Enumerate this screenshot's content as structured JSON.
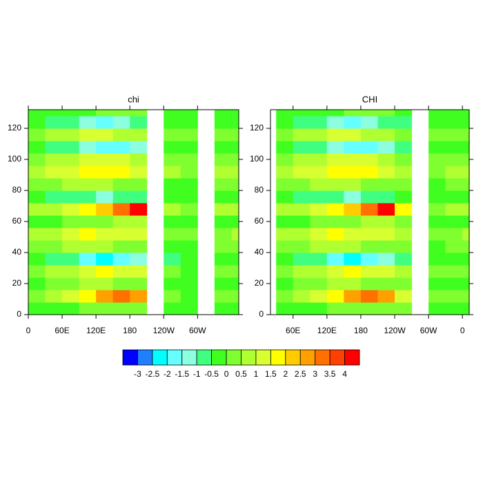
{
  "chart_data": [
    {
      "type": "heatmap",
      "title": "chi",
      "x": [
        15,
        45,
        75,
        105,
        135,
        165,
        195,
        225,
        255,
        285,
        315,
        345,
        375
      ],
      "y": [
        4,
        12,
        20,
        28,
        36,
        44,
        52,
        60,
        68,
        76,
        84,
        92,
        100,
        108,
        116,
        124,
        132
      ],
      "z": [
        [
          -0.2,
          -0.2,
          -0.2,
          0.2,
          0.2,
          0.2,
          0.2,
          null,
          -0.2,
          -0.2,
          null,
          -0.2,
          -0.2
        ],
        [
          0.2,
          0.5,
          1.2,
          1.8,
          2.6,
          3.2,
          2.8,
          null,
          0.2,
          -0.2,
          null,
          0.2,
          0.2
        ],
        [
          -0.2,
          0.2,
          0.2,
          0.6,
          0.6,
          0.3,
          0.3,
          null,
          -0.2,
          -0.2,
          null,
          -0.2,
          -0.2
        ],
        [
          0.2,
          0.6,
          0.8,
          1.2,
          1.6,
          1.4,
          1.0,
          null,
          0.2,
          -0.2,
          null,
          0.2,
          0.2
        ],
        [
          -0.3,
          -0.7,
          -1.0,
          -1.6,
          -2.4,
          -2.0,
          -1.2,
          null,
          -0.6,
          -0.4,
          null,
          -0.3,
          -0.3
        ],
        [
          0.2,
          0.4,
          0.6,
          0.8,
          0.6,
          0.4,
          0.3,
          null,
          -0.2,
          -0.2,
          null,
          0.2,
          0.2
        ],
        [
          0.6,
          0.8,
          1.2,
          1.6,
          1.4,
          1.2,
          1.0,
          null,
          0.3,
          0.2,
          null,
          0.4,
          0.6
        ],
        [
          -0.2,
          -0.2,
          0.2,
          0.2,
          0.4,
          0.6,
          0.6,
          null,
          -0.2,
          -0.2,
          null,
          -0.2,
          -0.2
        ],
        [
          0.6,
          0.8,
          1.2,
          1.8,
          2.4,
          3.4,
          4.1,
          null,
          0.6,
          0.4,
          null,
          0.6,
          0.6
        ],
        [
          -0.4,
          -0.6,
          -0.8,
          -1.0,
          -1.2,
          -0.8,
          -0.6,
          null,
          -0.4,
          -0.3,
          null,
          -0.4,
          -0.4
        ],
        [
          0.2,
          0.4,
          0.6,
          0.8,
          0.6,
          0.4,
          0.2,
          null,
          -0.2,
          -0.2,
          null,
          0.2,
          0.2
        ],
        [
          0.6,
          1.0,
          1.4,
          1.6,
          1.8,
          1.6,
          1.2,
          null,
          0.6,
          0.4,
          null,
          0.6,
          0.6
        ],
        [
          0.4,
          0.6,
          0.8,
          1.2,
          1.2,
          1.0,
          0.8,
          null,
          0.3,
          0.2,
          null,
          0.4,
          0.4
        ],
        [
          -0.3,
          -0.6,
          -1.0,
          -1.4,
          -1.8,
          -1.6,
          -1.2,
          null,
          -0.4,
          -0.3,
          null,
          -0.3,
          -0.3
        ],
        [
          0.4,
          0.6,
          0.8,
          1.0,
          1.0,
          0.8,
          0.6,
          null,
          0.2,
          0.2,
          null,
          0.4,
          0.4
        ],
        [
          -0.3,
          -0.6,
          -1.0,
          -1.4,
          -1.6,
          -1.4,
          -1.0,
          null,
          -0.4,
          -0.3,
          null,
          -0.3,
          -0.3
        ],
        [
          -0.2,
          -0.2,
          -0.2,
          -0.2,
          0.2,
          0.2,
          0.2,
          null,
          -0.2,
          -0.2,
          null,
          -0.2,
          -0.2
        ]
      ],
      "xlim": [
        0,
        373
      ],
      "ylim": [
        0,
        132
      ],
      "xticks": [
        0,
        {
          "value": 60,
          "label": "60E"
        },
        {
          "value": 120,
          "label": "120E"
        },
        180,
        {
          "value": 240,
          "label": "120W"
        },
        {
          "value": 300,
          "label": "60W"
        }
      ],
      "yticks": [
        0,
        20,
        40,
        60,
        80,
        100,
        120
      ]
    },
    {
      "type": "heatmap",
      "title": "CHI",
      "x": [
        15,
        45,
        75,
        105,
        135,
        165,
        195,
        225,
        255,
        285,
        315,
        345,
        375
      ],
      "y": [
        4,
        12,
        20,
        28,
        36,
        44,
        52,
        60,
        68,
        76,
        84,
        92,
        100,
        108,
        116,
        124,
        132
      ],
      "z": [
        [
          null,
          -0.2,
          -0.2,
          -0.2,
          0.2,
          0.2,
          0.2,
          0.2,
          0.2,
          null,
          -0.2,
          -0.2,
          -0.2
        ],
        [
          null,
          0.2,
          0.5,
          1.2,
          1.8,
          2.6,
          3.2,
          2.8,
          1.2,
          null,
          0.2,
          0.2,
          0.2
        ],
        [
          null,
          -0.2,
          0.2,
          0.2,
          0.6,
          0.6,
          0.3,
          0.3,
          0.2,
          null,
          -0.2,
          -0.2,
          -0.2
        ],
        [
          null,
          0.2,
          0.6,
          0.8,
          1.2,
          1.6,
          1.4,
          1.0,
          0.6,
          null,
          0.2,
          0.2,
          0.2
        ],
        [
          null,
          -0.3,
          -0.7,
          -1.0,
          -1.6,
          -2.4,
          -2.0,
          -1.2,
          -0.8,
          null,
          -0.4,
          -0.3,
          -0.3
        ],
        [
          null,
          0.2,
          0.4,
          0.6,
          0.8,
          0.6,
          0.4,
          0.3,
          0.2,
          null,
          -0.2,
          0.2,
          0.2
        ],
        [
          null,
          0.6,
          0.8,
          1.2,
          1.6,
          1.4,
          1.2,
          1.0,
          0.6,
          null,
          0.2,
          0.4,
          0.6
        ],
        [
          null,
          -0.2,
          -0.2,
          0.2,
          0.2,
          0.4,
          0.6,
          0.6,
          0.2,
          null,
          -0.2,
          -0.2,
          -0.2
        ],
        [
          null,
          0.6,
          0.8,
          1.2,
          1.8,
          2.4,
          3.4,
          4.1,
          1.6,
          null,
          0.4,
          0.6,
          0.6
        ],
        [
          null,
          -0.4,
          -0.6,
          -0.8,
          -1.0,
          -1.2,
          -0.8,
          -0.6,
          -0.4,
          null,
          -0.3,
          -0.4,
          -0.4
        ],
        [
          null,
          0.2,
          0.4,
          0.6,
          0.8,
          0.6,
          0.4,
          0.2,
          0.2,
          null,
          -0.2,
          0.2,
          0.2
        ],
        [
          null,
          0.6,
          1.0,
          1.4,
          1.6,
          1.8,
          1.6,
          1.2,
          0.8,
          null,
          0.4,
          0.6,
          0.6
        ],
        [
          null,
          0.4,
          0.6,
          0.8,
          1.2,
          1.2,
          1.0,
          0.8,
          0.4,
          null,
          0.2,
          0.4,
          0.4
        ],
        [
          null,
          -0.3,
          -0.6,
          -1.0,
          -1.4,
          -1.8,
          -1.6,
          -1.2,
          -0.6,
          null,
          -0.3,
          -0.3,
          -0.3
        ],
        [
          null,
          0.4,
          0.6,
          0.8,
          1.0,
          1.0,
          0.8,
          0.6,
          0.4,
          null,
          0.2,
          0.4,
          0.4
        ],
        [
          null,
          -0.3,
          -0.6,
          -1.0,
          -1.4,
          -1.6,
          -1.4,
          -1.0,
          -0.6,
          null,
          -0.3,
          -0.3,
          -0.3
        ],
        [
          null,
          -0.2,
          -0.2,
          -0.2,
          -0.2,
          0.2,
          0.2,
          0.2,
          -0.2,
          null,
          -0.2,
          -0.2,
          -0.2
        ]
      ],
      "xlim": [
        20,
        372
      ],
      "ylim": [
        0,
        132
      ],
      "xticks": [
        {
          "value": 60,
          "label": "60E"
        },
        {
          "value": 120,
          "label": "120E"
        },
        180,
        {
          "value": 240,
          "label": "120W"
        },
        {
          "value": 300,
          "label": "60W"
        },
        {
          "value": 360,
          "label": "0"
        }
      ],
      "yticks": [
        0,
        20,
        40,
        60,
        80,
        100,
        120
      ]
    }
  ],
  "colorbar": {
    "levels": [
      -3,
      -2.5,
      -2,
      -1.5,
      -1,
      -0.5,
      0,
      0.5,
      1,
      1.5,
      2,
      2.5,
      3,
      3.5,
      4
    ],
    "colors": [
      "#0000ff",
      "#1f7fff",
      "#00ffff",
      "#66ffff",
      "#8cffe0",
      "#40ff80",
      "#40ff20",
      "#80ff30",
      "#b0ff30",
      "#d8ff30",
      "#ffff00",
      "#ffcc00",
      "#ffa000",
      "#ff7000",
      "#ff4000",
      "#ff0000"
    ]
  }
}
